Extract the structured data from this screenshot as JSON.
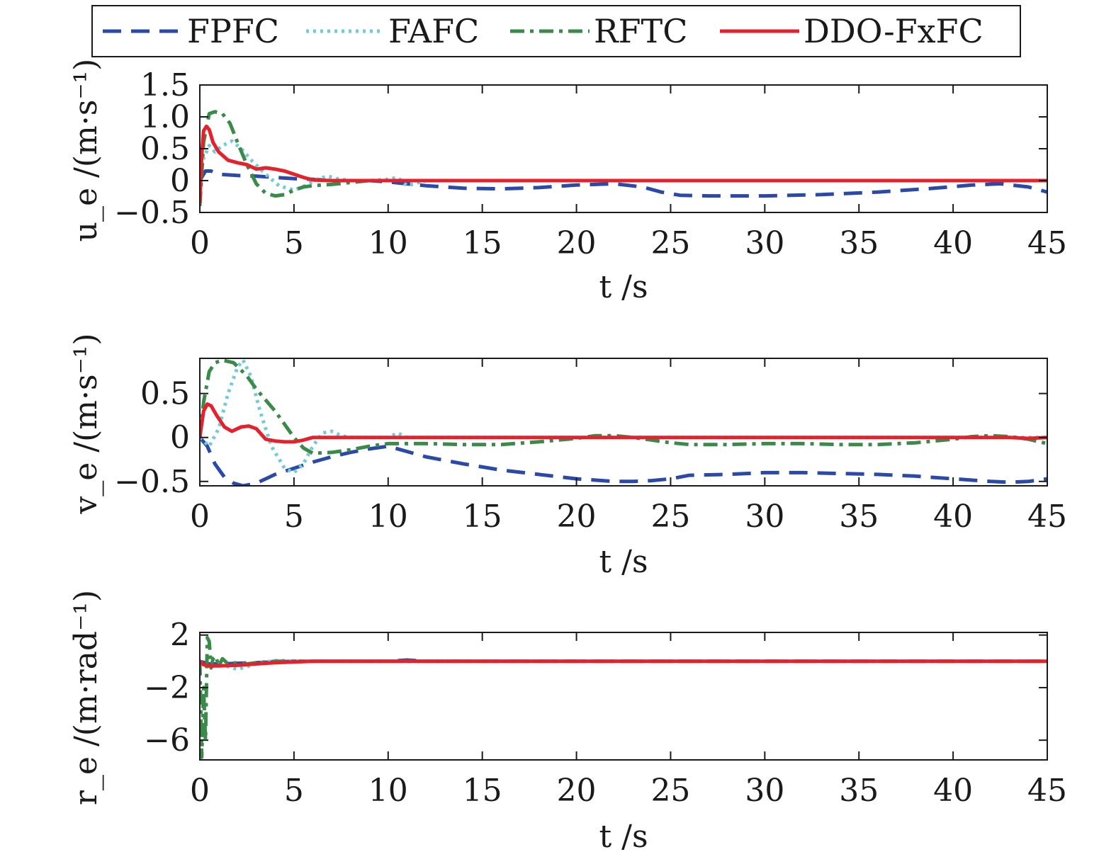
{
  "colors": {
    "FPFC": "#2b4aa8",
    "FAFC": "#72cbd6",
    "RFTC": "#3a8a4a",
    "DDO-FxFC": "#e3222e",
    "axis": "#1a1a1a"
  },
  "legend": {
    "placement": "top-center",
    "items": [
      {
        "label": "FPFC",
        "style": "dashed"
      },
      {
        "label": "FAFC",
        "style": "dotted"
      },
      {
        "label": "RFTC",
        "style": "dash-dot"
      },
      {
        "label": "DDO-FxFC",
        "style": "solid"
      }
    ]
  },
  "chart_data": [
    {
      "type": "line",
      "ylabel": "u_e /(m·s⁻¹)",
      "xlabel": "t /s",
      "xlim": [
        0,
        45
      ],
      "ylim": [
        -0.5,
        1.5
      ],
      "xticks": [
        "0",
        "5",
        "10",
        "15",
        "20",
        "25",
        "30",
        "35",
        "40",
        "45"
      ],
      "xtick_values": [
        0,
        5,
        10,
        15,
        20,
        25,
        30,
        35,
        40,
        45
      ],
      "yticks": [
        "1.5",
        "1.0",
        "0.5",
        "0",
        "−0.5"
      ],
      "ytick_values": [
        1.5,
        1.0,
        0.5,
        0,
        -0.5
      ],
      "series": [
        {
          "name": "FPFC",
          "x": [
            0,
            0.3,
            0.6,
            1,
            2,
            3,
            4,
            5,
            6,
            7,
            8,
            9,
            10,
            12,
            14,
            16,
            18,
            20,
            22,
            23.5,
            24.5,
            25.5,
            27,
            30,
            33,
            36,
            39,
            41,
            42.5,
            44,
            45
          ],
          "y": [
            0,
            0.15,
            0.15,
            0.1,
            0.08,
            0.07,
            0.05,
            0.03,
            0.02,
            0.0,
            0.0,
            0.0,
            -0.02,
            -0.08,
            -0.12,
            -0.13,
            -0.11,
            -0.07,
            -0.05,
            -0.1,
            -0.18,
            -0.23,
            -0.24,
            -0.24,
            -0.22,
            -0.18,
            -0.12,
            -0.07,
            -0.05,
            -0.1,
            -0.18
          ]
        },
        {
          "name": "FAFC",
          "x": [
            0,
            0.2,
            0.5,
            0.8,
            1.2,
            1.7,
            2.2,
            2.8,
            3.5,
            4.2,
            5,
            5.6,
            6.2,
            6.8,
            7.3,
            8,
            9,
            10,
            10.5,
            11,
            12,
            14,
            45
          ],
          "y": [
            0,
            0.35,
            0.55,
            0.45,
            0.55,
            0.62,
            0.5,
            0.3,
            0.1,
            -0.08,
            -0.15,
            -0.08,
            0.02,
            0.07,
            0.03,
            0.0,
            0.0,
            0.02,
            0.05,
            -0.08,
            0.0,
            0.0,
            0.0
          ]
        },
        {
          "name": "RFTC",
          "x": [
            0,
            0.2,
            0.5,
            0.8,
            1.2,
            1.6,
            2,
            2.5,
            3,
            3.5,
            4,
            4.5,
            5,
            5.5,
            6,
            7,
            8,
            9,
            10,
            45
          ],
          "y": [
            -0.4,
            0.6,
            1.05,
            1.08,
            1.05,
            0.9,
            0.6,
            0.25,
            -0.05,
            -0.2,
            -0.24,
            -0.22,
            -0.15,
            -0.1,
            -0.08,
            -0.06,
            -0.03,
            0.0,
            0.0,
            0.0
          ]
        },
        {
          "name": "DDO-FxFC",
          "x": [
            0,
            0.1,
            0.2,
            0.35,
            0.5,
            0.7,
            1,
            1.5,
            2,
            2.5,
            3,
            3.5,
            4,
            4.5,
            5,
            5.5,
            6,
            7,
            8,
            10,
            45
          ],
          "y": [
            -0.35,
            0.4,
            0.78,
            0.85,
            0.8,
            0.6,
            0.45,
            0.32,
            0.28,
            0.25,
            0.18,
            0.2,
            0.18,
            0.15,
            0.1,
            0.05,
            0.01,
            0.0,
            0.0,
            0.0,
            0.0
          ]
        }
      ]
    },
    {
      "type": "line",
      "ylabel": "v_e /(m·s⁻¹)",
      "xlabel": "t /s",
      "xlim": [
        0,
        45
      ],
      "ylim": [
        -0.55,
        0.9
      ],
      "xticks": [
        "0",
        "5",
        "10",
        "15",
        "20",
        "25",
        "30",
        "35",
        "40",
        "45"
      ],
      "xtick_values": [
        0,
        5,
        10,
        15,
        20,
        25,
        30,
        35,
        40,
        45
      ],
      "yticks": [
        "0.5",
        "0",
        "−0.5"
      ],
      "ytick_values": [
        0.5,
        0,
        -0.5
      ],
      "series": [
        {
          "name": "FPFC",
          "x": [
            0,
            0.4,
            0.8,
            1.3,
            1.8,
            2.3,
            3,
            4,
            5,
            6,
            7,
            8,
            9,
            10,
            12,
            14,
            16,
            18,
            20,
            22,
            23,
            24,
            25,
            26,
            28,
            30,
            32,
            34,
            36,
            38,
            40,
            42,
            43,
            44,
            45
          ],
          "y": [
            0,
            -0.1,
            -0.3,
            -0.45,
            -0.52,
            -0.55,
            -0.52,
            -0.42,
            -0.35,
            -0.28,
            -0.22,
            -0.17,
            -0.13,
            -0.1,
            -0.22,
            -0.3,
            -0.37,
            -0.42,
            -0.47,
            -0.5,
            -0.5,
            -0.49,
            -0.47,
            -0.43,
            -0.42,
            -0.4,
            -0.4,
            -0.41,
            -0.42,
            -0.44,
            -0.47,
            -0.5,
            -0.51,
            -0.5,
            -0.47
          ]
        },
        {
          "name": "FAFC",
          "x": [
            0,
            0.5,
            1,
            1.5,
            2,
            2.3,
            2.7,
            3.2,
            3.8,
            4.5,
            5,
            5.5,
            6,
            6.5,
            7,
            7.5,
            8,
            9,
            10,
            10.5,
            11,
            12,
            45
          ],
          "y": [
            0,
            -0.1,
            0.1,
            0.5,
            0.8,
            0.88,
            0.7,
            0.3,
            -0.1,
            -0.35,
            -0.4,
            -0.3,
            -0.1,
            0.05,
            0.07,
            0.02,
            0.0,
            0.0,
            0.0,
            0.05,
            0.0,
            0.0,
            0.0
          ]
        },
        {
          "name": "RFTC",
          "x": [
            0,
            0.2,
            0.5,
            0.8,
            1.2,
            1.8,
            2.5,
            3,
            4,
            5,
            5.5,
            6,
            7,
            8,
            9,
            10,
            12,
            14,
            16,
            18,
            20,
            21,
            22,
            23,
            24,
            25,
            26,
            28,
            30,
            32,
            34,
            36,
            38,
            40,
            41,
            42,
            43,
            44,
            45
          ],
          "y": [
            0,
            0.4,
            0.75,
            0.85,
            0.88,
            0.85,
            0.7,
            0.55,
            0.3,
            0.0,
            -0.12,
            -0.18,
            -0.17,
            -0.14,
            -0.1,
            -0.07,
            -0.07,
            -0.08,
            -0.08,
            -0.05,
            -0.01,
            0.02,
            0.02,
            0.0,
            -0.03,
            -0.06,
            -0.08,
            -0.08,
            -0.07,
            -0.07,
            -0.08,
            -0.08,
            -0.06,
            -0.02,
            0.01,
            0.02,
            0.01,
            -0.02,
            -0.07
          ]
        },
        {
          "name": "DDO-FxFC",
          "x": [
            0,
            0.2,
            0.4,
            0.6,
            0.9,
            1.3,
            1.7,
            2.2,
            2.6,
            3,
            3.5,
            4,
            4.5,
            5,
            5.5,
            6,
            7,
            8,
            10,
            43,
            44,
            45
          ],
          "y": [
            0,
            0.3,
            0.38,
            0.36,
            0.25,
            0.12,
            0.07,
            0.12,
            0.13,
            0.1,
            -0.02,
            -0.04,
            -0.05,
            -0.05,
            -0.03,
            0.0,
            0.0,
            0.0,
            0.0,
            0.0,
            -0.01,
            0.0
          ]
        }
      ]
    },
    {
      "type": "line",
      "ylabel": "r_e /(m·rad⁻¹)",
      "xlabel": "t /s",
      "xlim": [
        0,
        45
      ],
      "ylim": [
        -7.5,
        2.2
      ],
      "xticks": [
        "0",
        "5",
        "10",
        "15",
        "20",
        "25",
        "30",
        "35",
        "40",
        "45"
      ],
      "xtick_values": [
        0,
        5,
        10,
        15,
        20,
        25,
        30,
        35,
        40,
        45
      ],
      "yticks": [
        "2",
        "−2",
        "−6"
      ],
      "ytick_values": [
        2,
        -2,
        -6
      ],
      "series": [
        {
          "name": "FPFC",
          "x": [
            0,
            0.5,
            1,
            2,
            3,
            4,
            5,
            10,
            11,
            12,
            45
          ],
          "y": [
            0,
            -0.2,
            -0.2,
            -0.15,
            -0.1,
            -0.05,
            0,
            0,
            0.1,
            0,
            0
          ]
        },
        {
          "name": "FAFC",
          "x": [
            0,
            0.3,
            0.6,
            1,
            1.5,
            2,
            2.5,
            3,
            3.5,
            4,
            4.5,
            5,
            45
          ],
          "y": [
            0,
            -0.3,
            -0.4,
            -0.3,
            -0.4,
            -0.6,
            -0.4,
            -0.2,
            -0.05,
            0.05,
            0.05,
            0,
            0
          ]
        },
        {
          "name": "RFTC",
          "x": [
            0,
            0.1,
            0.2,
            0.3,
            0.4,
            0.5,
            0.6,
            0.7,
            0.85,
            1,
            1.2,
            1.5,
            2,
            2.5,
            3,
            4,
            5,
            45
          ],
          "y": [
            0,
            -7.3,
            -2,
            -6,
            1.8,
            1.5,
            -0.5,
            0.2,
            0.4,
            -0.4,
            0.2,
            -0.2,
            -0.1,
            -0.2,
            -0.1,
            0,
            0,
            0
          ]
        },
        {
          "name": "DDO-FxFC",
          "x": [
            0,
            0.2,
            0.5,
            1,
            2,
            3,
            4,
            5,
            6,
            45
          ],
          "y": [
            0,
            -0.25,
            -0.35,
            -0.35,
            -0.3,
            -0.2,
            -0.1,
            -0.05,
            0,
            0
          ]
        }
      ]
    }
  ]
}
